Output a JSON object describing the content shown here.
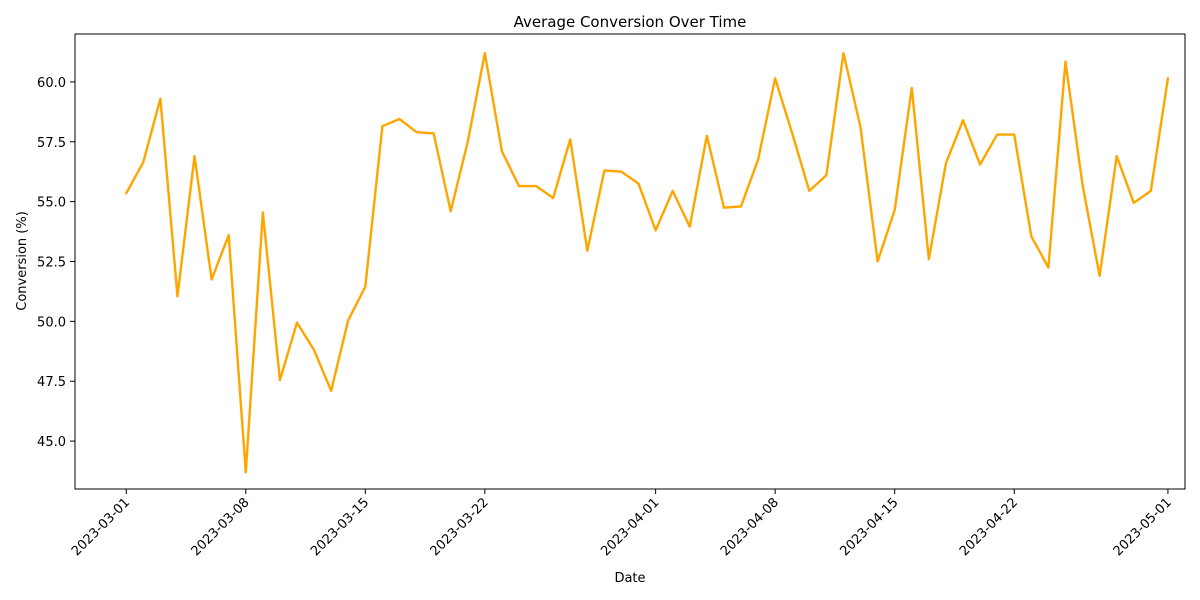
{
  "chart_data": {
    "type": "line",
    "title": "Average Conversion Over Time",
    "xlabel": "Date",
    "ylabel": "Conversion (%)",
    "line_color": "#FFA500",
    "grid": false,
    "legend": "none",
    "xlim": [
      "2023-02-26",
      "2023-05-02"
    ],
    "ylim": [
      43.0,
      62.0
    ],
    "x_ticks": [
      "2023-03-01",
      "2023-03-08",
      "2023-03-15",
      "2023-03-22",
      "2023-04-01",
      "2023-04-08",
      "2023-04-15",
      "2023-04-22",
      "2023-05-01"
    ],
    "y_ticks": [
      "45.0",
      "47.5",
      "50.0",
      "52.5",
      "55.0",
      "57.5",
      "60.0"
    ],
    "series": [
      {
        "x": [
          "2023-03-01",
          "2023-03-02",
          "2023-03-03",
          "2023-03-04",
          "2023-03-05",
          "2023-03-06",
          "2023-03-07",
          "2023-03-08",
          "2023-03-09",
          "2023-03-10",
          "2023-03-11",
          "2023-03-12",
          "2023-03-13",
          "2023-03-14",
          "2023-03-15",
          "2023-03-16",
          "2023-03-17",
          "2023-03-18",
          "2023-03-19",
          "2023-03-20",
          "2023-03-21",
          "2023-03-22",
          "2023-03-23",
          "2023-03-24",
          "2023-03-25",
          "2023-03-26",
          "2023-03-27",
          "2023-03-28",
          "2023-03-29",
          "2023-03-30",
          "2023-03-31",
          "2023-04-01",
          "2023-04-02",
          "2023-04-03",
          "2023-04-04",
          "2023-04-05",
          "2023-04-06",
          "2023-04-07",
          "2023-04-08",
          "2023-04-09",
          "2023-04-10",
          "2023-04-11",
          "2023-04-12",
          "2023-04-13",
          "2023-04-14",
          "2023-04-15",
          "2023-04-16",
          "2023-04-17",
          "2023-04-18",
          "2023-04-19",
          "2023-04-20",
          "2023-04-21",
          "2023-04-22",
          "2023-04-23",
          "2023-04-24",
          "2023-04-25",
          "2023-04-26",
          "2023-04-27",
          "2023-04-28",
          "2023-04-29",
          "2023-04-30",
          "2023-05-01"
        ],
        "y": [
          55.35,
          56.65,
          59.3,
          51.05,
          56.9,
          51.75,
          53.6,
          43.7,
          54.55,
          47.55,
          49.95,
          48.8,
          47.1,
          50.05,
          51.45,
          58.15,
          58.45,
          57.9,
          57.85,
          54.6,
          57.5,
          61.2,
          57.1,
          55.65,
          55.65,
          55.15,
          57.6,
          52.95,
          56.3,
          56.25,
          55.75,
          53.8,
          55.45,
          53.95,
          57.75,
          54.75,
          54.8,
          56.75,
          60.15,
          57.85,
          55.45,
          56.1,
          61.2,
          58.1,
          52.5,
          54.65,
          59.75,
          52.6,
          56.6,
          58.4,
          56.55,
          57.8,
          57.8,
          53.55,
          52.25,
          60.85,
          55.7,
          51.9,
          56.9,
          54.95,
          55.45,
          60.15
        ]
      }
    ]
  }
}
